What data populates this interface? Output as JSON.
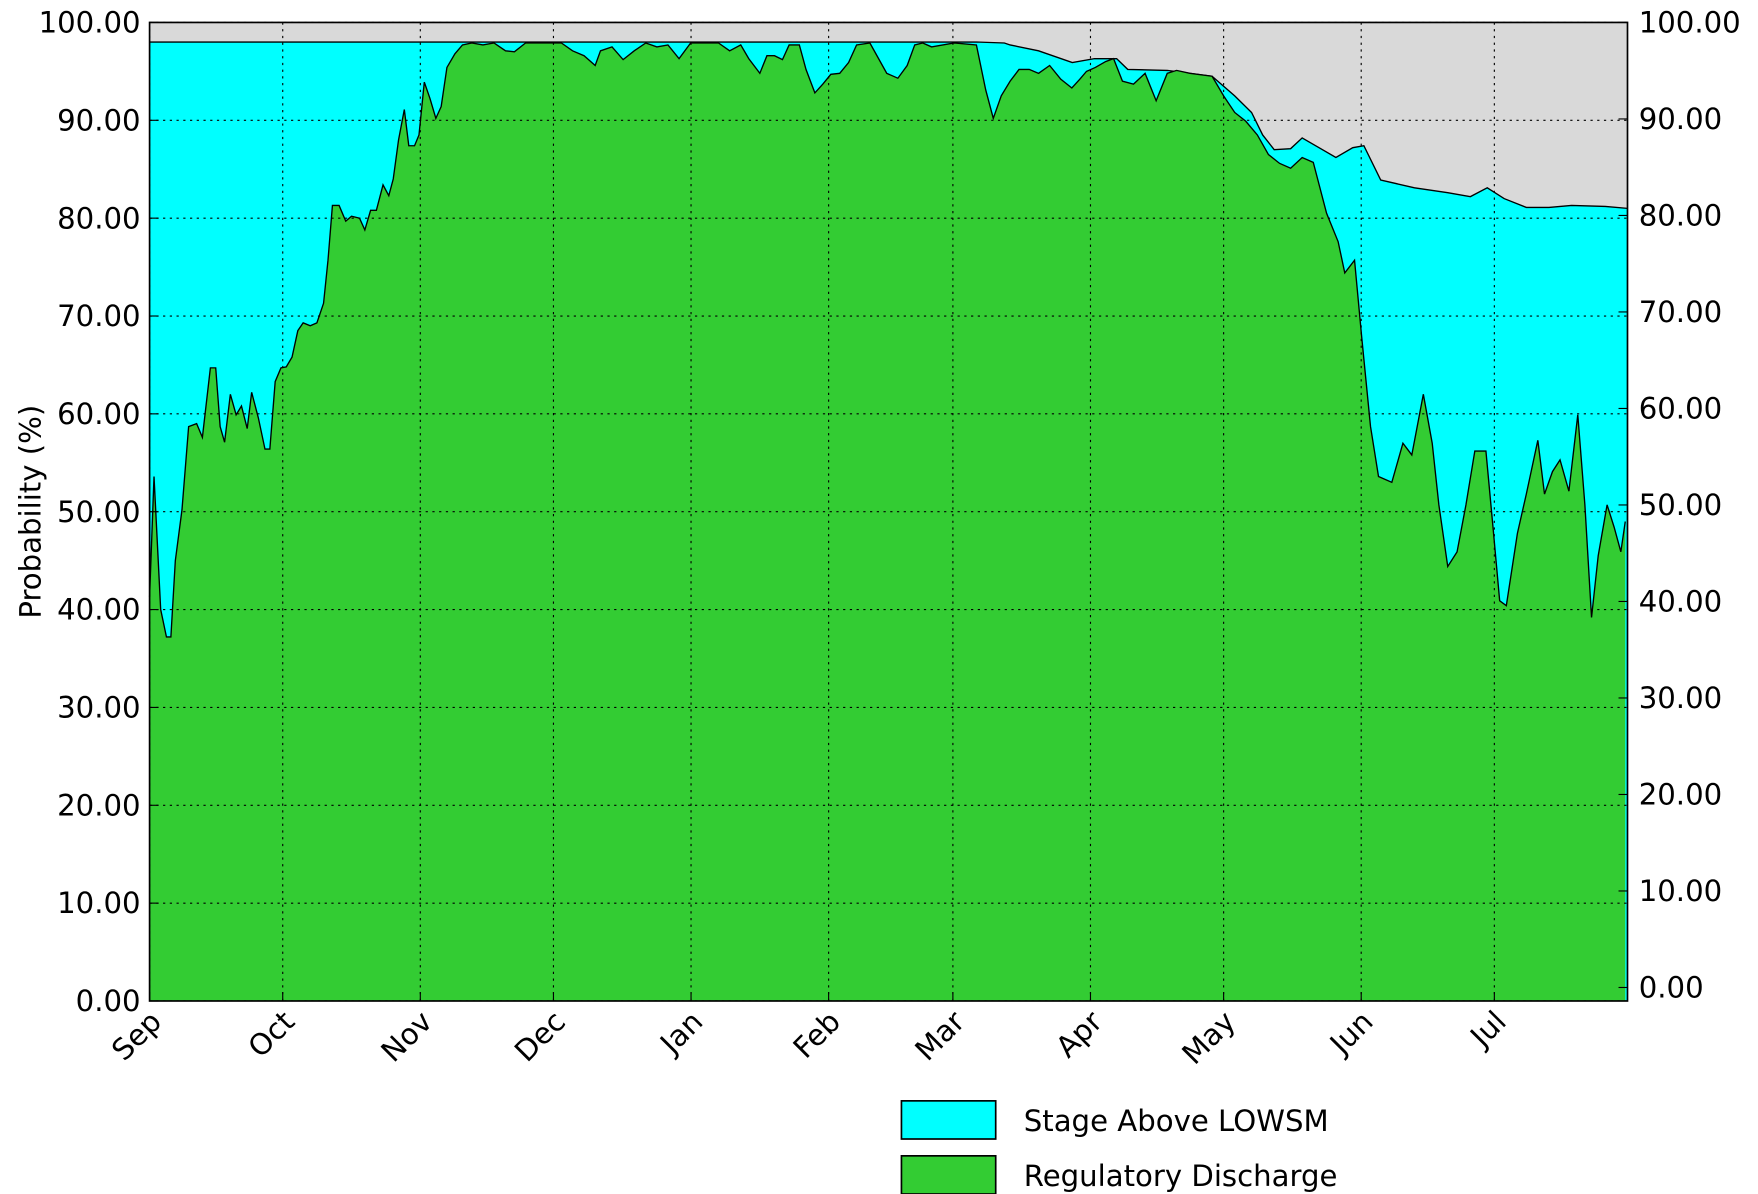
{
  "chart_data": {
    "type": "area",
    "y_label": "Probability (%)",
    "xlim": [
      0,
      333
    ],
    "xticks": [
      {
        "value": 0,
        "label": "Sep"
      },
      {
        "value": 30,
        "label": "Oct"
      },
      {
        "value": 61,
        "label": "Nov"
      },
      {
        "value": 91,
        "label": "Dec"
      },
      {
        "value": 122,
        "label": "Jan"
      },
      {
        "value": 153,
        "label": "Feb"
      },
      {
        "value": 181,
        "label": "Mar"
      },
      {
        "value": 212,
        "label": "Apr"
      },
      {
        "value": 242,
        "label": "May"
      },
      {
        "value": 273,
        "label": "Jun"
      },
      {
        "value": 303,
        "label": "Jul"
      }
    ],
    "ylim": [
      0,
      100
    ],
    "yticks": [
      {
        "value": 0,
        "label": "0.00"
      },
      {
        "value": 10,
        "label": "10.00"
      },
      {
        "value": 20,
        "label": "20.00"
      },
      {
        "value": 30,
        "label": "30.00"
      },
      {
        "value": 40,
        "label": "40.00"
      },
      {
        "value": 50,
        "label": "50.00"
      },
      {
        "value": 60,
        "label": "60.00"
      },
      {
        "value": 70,
        "label": "70.00"
      },
      {
        "value": 80,
        "label": "80.00"
      },
      {
        "value": 90,
        "label": "90.00"
      },
      {
        "value": 100,
        "label": "100.00"
      }
    ],
    "y2lim": [
      -1.4,
      100
    ],
    "y2ticks": [
      {
        "value": 0,
        "label": "0.00"
      },
      {
        "value": 10,
        "label": "10.00"
      },
      {
        "value": 20,
        "label": "20.00"
      },
      {
        "value": 30,
        "label": "30.00"
      },
      {
        "value": 40,
        "label": "40.00"
      },
      {
        "value": 50,
        "label": "50.00"
      },
      {
        "value": 60,
        "label": "60.00"
      },
      {
        "value": 70,
        "label": "70.00"
      },
      {
        "value": 80,
        "label": "80.00"
      },
      {
        "value": 90,
        "label": "90.00"
      },
      {
        "value": 100,
        "label": "100.00"
      }
    ],
    "grid": true,
    "background": "#d9d9d9",
    "legend": "bottom",
    "series": [
      {
        "name": "Stage Above LOWSM",
        "color": "#00ffff",
        "x": [
          0,
          186.3,
          192.6,
          193.9,
          200.3,
          207.9,
          212.9,
          217.9,
          220.4,
          229.3,
          239.4,
          244.5,
          248.3,
          250.8,
          253.4,
          257.1,
          259.7,
          263.5,
          267.3,
          271.1,
          273.6,
          277.4,
          285.0,
          292.5,
          297.6,
          301.4,
          305.2,
          310.2,
          315.3,
          320.4,
          328.0,
          333
        ],
        "values": [
          98,
          98,
          97.9,
          97.7,
          97.1,
          95.9,
          96.3,
          96.3,
          95.2,
          95.1,
          94.5,
          92.5,
          90.8,
          88.5,
          87.0,
          87.1,
          88.2,
          87.2,
          86.2,
          87.2,
          87.4,
          83.9,
          83.1,
          82.6,
          82.2,
          83.1,
          82.0,
          81.1,
          81.1,
          81.3,
          81.2,
          81.0
        ]
      },
      {
        "name": "Regulatory Discharge",
        "color": "#33cc33",
        "x": [
          0,
          1.0,
          2.5,
          3.8,
          4.8,
          5.8,
          7.3,
          8.8,
          10.6,
          11.9,
          13.7,
          14.9,
          15.9,
          16.9,
          18.2,
          19.5,
          20.7,
          22.0,
          23.0,
          24.5,
          26.0,
          27.1,
          28.3,
          29.6,
          30.8,
          32.1,
          33.4,
          34.6,
          36.2,
          37.7,
          39.2,
          40.2,
          41.2,
          42.7,
          44.2,
          45.5,
          47.3,
          48.5,
          49.8,
          51.1,
          52.6,
          53.9,
          54.9,
          56.1,
          57.4,
          58.4,
          59.7,
          60.7,
          61.9,
          63.2,
          64.5,
          65.7,
          67.0,
          68.8,
          70.5,
          72.6,
          75.1,
          77.6,
          80.2,
          82.2,
          84.7,
          92.8,
          95.3,
          97.9,
          100.4,
          101.6,
          104.2,
          106.7,
          109.2,
          111.8,
          114.3,
          116.8,
          119.3,
          121.9,
          128.2,
          130.7,
          133.2,
          135.0,
          137.5,
          139.1,
          140.8,
          142.6,
          144.1,
          146.4,
          147.9,
          149.9,
          151.7,
          153.5,
          155.5,
          157.5,
          159.3,
          162.3,
          166.1,
          168.6,
          170.7,
          172.4,
          174.2,
          176.2,
          181.3,
          186.3,
          188.4,
          190.1,
          191.9,
          193.9,
          195.9,
          198.2,
          200.3,
          202.8,
          205.3,
          207.8,
          209.6,
          211.1,
          213.1,
          215.4,
          217.2,
          219.2,
          221.7,
          224.3,
          226.8,
          229.3,
          231.4,
          234.4,
          239.4,
          242.0,
          244.5,
          247.0,
          249.6,
          252.1,
          254.6,
          257.1,
          259.7,
          262.2,
          265.2,
          267.8,
          269.3,
          271.5,
          273.1,
          275.1,
          276.9,
          279.9,
          282.4,
          284.4,
          287.0,
          289.0,
          290.5,
          292.5,
          294.6,
          296.6,
          298.6,
          301.1,
          302.7,
          304.2,
          305.7,
          308.2,
          310.2,
          312.8,
          314.3,
          316.1,
          317.8,
          319.8,
          321.8,
          323.4,
          324.9,
          326.4,
          328.4,
          330.0,
          331.5,
          332.5
        ],
        "values": [
          41.3,
          53.6,
          40.0,
          37.2,
          37.2,
          45.0,
          50.2,
          58.7,
          59.0,
          57.6,
          64.7,
          64.7,
          58.7,
          57.1,
          62.0,
          59.9,
          60.8,
          58.5,
          62.2,
          59.6,
          56.4,
          56.4,
          63.3,
          64.7,
          64.8,
          65.8,
          68.5,
          69.3,
          69.0,
          69.3,
          71.3,
          75.7,
          81.3,
          81.3,
          79.7,
          80.2,
          80.0,
          78.8,
          80.8,
          80.8,
          83.4,
          82.3,
          84.0,
          88.0,
          91.1,
          87.4,
          87.4,
          88.5,
          93.9,
          92.2,
          90.2,
          91.4,
          95.4,
          96.8,
          97.7,
          97.9,
          97.7,
          97.9,
          97.1,
          97.0,
          97.9,
          97.9,
          97.1,
          96.6,
          95.6,
          97.1,
          97.5,
          96.2,
          97.1,
          97.9,
          97.5,
          97.7,
          96.3,
          97.9,
          97.9,
          97.1,
          97.7,
          96.3,
          94.8,
          96.6,
          96.6,
          96.2,
          97.7,
          97.7,
          95.2,
          92.8,
          93.7,
          94.7,
          94.8,
          95.9,
          97.7,
          97.9,
          94.8,
          94.3,
          95.6,
          97.7,
          97.9,
          97.5,
          97.9,
          97.7,
          93.1,
          90.2,
          92.5,
          94.0,
          95.2,
          95.2,
          94.8,
          95.6,
          94.2,
          93.3,
          94.2,
          95.0,
          95.4,
          96.0,
          96.3,
          94.0,
          93.7,
          94.8,
          92.0,
          94.8,
          95.1,
          94.8,
          94.5,
          92.5,
          90.8,
          89.9,
          88.5,
          86.5,
          85.6,
          85.1,
          86.2,
          85.7,
          80.5,
          77.6,
          74.4,
          75.7,
          67.9,
          58.7,
          53.6,
          53.0,
          57.0,
          55.8,
          62.0,
          57.0,
          50.7,
          44.4,
          45.9,
          50.7,
          56.2,
          56.2,
          48.4,
          40.9,
          40.4,
          47.8,
          51.8,
          57.3,
          51.8,
          54.1,
          55.3,
          52.1,
          59.9,
          50.7,
          39.2,
          45.5,
          50.7,
          48.4,
          45.9,
          49.0
        ]
      }
    ]
  }
}
